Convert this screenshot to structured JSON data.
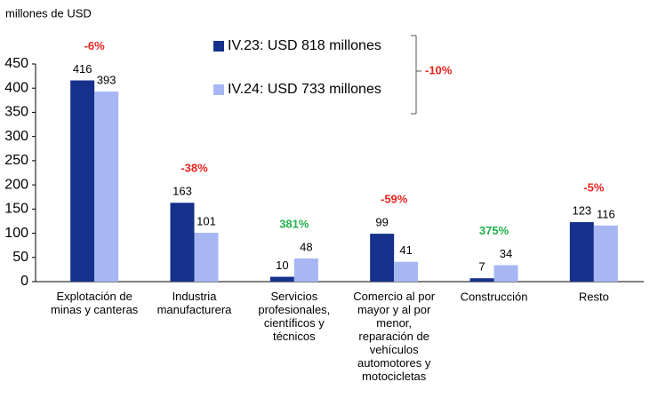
{
  "chart_data": {
    "type": "bar",
    "y_axis_label": "millones de USD",
    "categories": [
      "Explotación de\nminas y canteras",
      "Industria\nmanufacturera",
      "Servicios\nprofesionales,\ncientíficos y\ntécnicos",
      "Comercio al por\nmayor y al por\nmenor,\nreparación de\nvehículos\nautomotores y\nmotocicletas",
      "Construcción",
      "Resto"
    ],
    "series": [
      {
        "name": "IV.23: USD 818 millones",
        "color": "#15318c",
        "values": [
          416,
          163,
          10,
          99,
          7,
          123
        ]
      },
      {
        "name": "IV.24: USD 733 millones",
        "color": "#a6b7f4",
        "values": [
          393,
          101,
          48,
          41,
          34,
          116
        ]
      }
    ],
    "changes": {
      "values": [
        -6,
        -38,
        381,
        -59,
        375,
        -5
      ],
      "value_labels": [
        "-6%",
        "-38%",
        "381%",
        "-59%",
        "375%",
        "-5%"
      ],
      "colors": [
        "#e8231f",
        "#e8231f",
        "#22b14c",
        "#e8231f",
        "#22b14c",
        "#e8231f"
      ]
    },
    "total_change": {
      "value": -10,
      "label": "-10%",
      "color": "#e8231f"
    },
    "ylim": [
      0,
      450
    ],
    "yticks": [
      0,
      50,
      100,
      150,
      200,
      250,
      300,
      350,
      400,
      450
    ]
  }
}
